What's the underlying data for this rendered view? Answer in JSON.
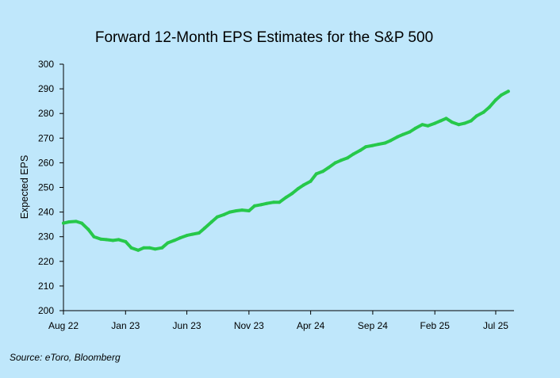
{
  "chart_data": {
    "type": "line",
    "title": "Forward 12-Month EPS Estimates for the S&P 500",
    "xlabel": "",
    "ylabel": "Expected EPS",
    "ylim": [
      200,
      300
    ],
    "y_ticks": [
      "200",
      "210",
      "220",
      "230",
      "240",
      "250",
      "260",
      "270",
      "280",
      "290",
      "300"
    ],
    "x_ticks": [
      "Aug 22",
      "Jan 23",
      "Jun 23",
      "Nov 23",
      "Apr 24",
      "Sep 24",
      "Feb 25",
      "Jul 25"
    ],
    "xlim": [
      "2022-08-01",
      "2025-08-15"
    ],
    "grid": false,
    "legend": "none",
    "source": "Source: eToro, Bloomberg",
    "colors": {
      "background": "#bfe7fb",
      "line": "#27c84a",
      "axis": "#000000"
    },
    "series": [
      {
        "points": [
          [
            "2022-08-01",
            235.5
          ],
          [
            "2022-08-15",
            236.0
          ],
          [
            "2022-09-01",
            236.2
          ],
          [
            "2022-09-15",
            235.5
          ],
          [
            "2022-10-01",
            233.0
          ],
          [
            "2022-10-15",
            230.0
          ],
          [
            "2022-11-01",
            229.0
          ],
          [
            "2022-11-15",
            228.8
          ],
          [
            "2022-12-01",
            228.5
          ],
          [
            "2022-12-15",
            228.8
          ],
          [
            "2023-01-01",
            228.0
          ],
          [
            "2023-01-15",
            225.5
          ],
          [
            "2023-02-01",
            224.5
          ],
          [
            "2023-02-15",
            225.5
          ],
          [
            "2023-03-01",
            225.5
          ],
          [
            "2023-03-15",
            225.0
          ],
          [
            "2023-04-01",
            225.5
          ],
          [
            "2023-04-15",
            227.5
          ],
          [
            "2023-05-01",
            228.5
          ],
          [
            "2023-05-15",
            229.5
          ],
          [
            "2023-06-01",
            230.5
          ],
          [
            "2023-06-15",
            231.0
          ],
          [
            "2023-07-01",
            231.5
          ],
          [
            "2023-07-15",
            233.5
          ],
          [
            "2023-08-01",
            236.0
          ],
          [
            "2023-08-15",
            238.0
          ],
          [
            "2023-09-01",
            239.0
          ],
          [
            "2023-09-15",
            240.0
          ],
          [
            "2023-10-01",
            240.5
          ],
          [
            "2023-10-15",
            240.8
          ],
          [
            "2023-11-01",
            240.5
          ],
          [
            "2023-11-15",
            242.5
          ],
          [
            "2023-12-01",
            243.0
          ],
          [
            "2023-12-15",
            243.5
          ],
          [
            "2024-01-01",
            244.0
          ],
          [
            "2024-01-15",
            244.0
          ],
          [
            "2024-02-01",
            246.0
          ],
          [
            "2024-02-15",
            247.5
          ],
          [
            "2024-03-01",
            249.5
          ],
          [
            "2024-03-15",
            251.0
          ],
          [
            "2024-04-01",
            252.5
          ],
          [
            "2024-04-15",
            255.5
          ],
          [
            "2024-05-01",
            256.5
          ],
          [
            "2024-05-15",
            258.0
          ],
          [
            "2024-06-01",
            260.0
          ],
          [
            "2024-06-15",
            261.0
          ],
          [
            "2024-07-01",
            262.0
          ],
          [
            "2024-07-15",
            263.5
          ],
          [
            "2024-08-01",
            265.0
          ],
          [
            "2024-08-15",
            266.5
          ],
          [
            "2024-09-01",
            267.0
          ],
          [
            "2024-09-15",
            267.5
          ],
          [
            "2024-10-01",
            268.0
          ],
          [
            "2024-10-15",
            269.0
          ],
          [
            "2024-11-01",
            270.5
          ],
          [
            "2024-11-15",
            271.5
          ],
          [
            "2024-12-01",
            272.5
          ],
          [
            "2024-12-15",
            274.0
          ],
          [
            "2025-01-01",
            275.5
          ],
          [
            "2025-01-15",
            275.0
          ],
          [
            "2025-02-01",
            276.0
          ],
          [
            "2025-02-15",
            277.0
          ],
          [
            "2025-03-01",
            278.0
          ],
          [
            "2025-03-15",
            276.5
          ],
          [
            "2025-04-01",
            275.5
          ],
          [
            "2025-04-15",
            276.0
          ],
          [
            "2025-05-01",
            277.0
          ],
          [
            "2025-05-15",
            279.0
          ],
          [
            "2025-06-01",
            280.5
          ],
          [
            "2025-06-15",
            282.5
          ],
          [
            "2025-07-01",
            285.5
          ],
          [
            "2025-07-15",
            287.5
          ],
          [
            "2025-08-01",
            289.0
          ]
        ]
      }
    ]
  }
}
